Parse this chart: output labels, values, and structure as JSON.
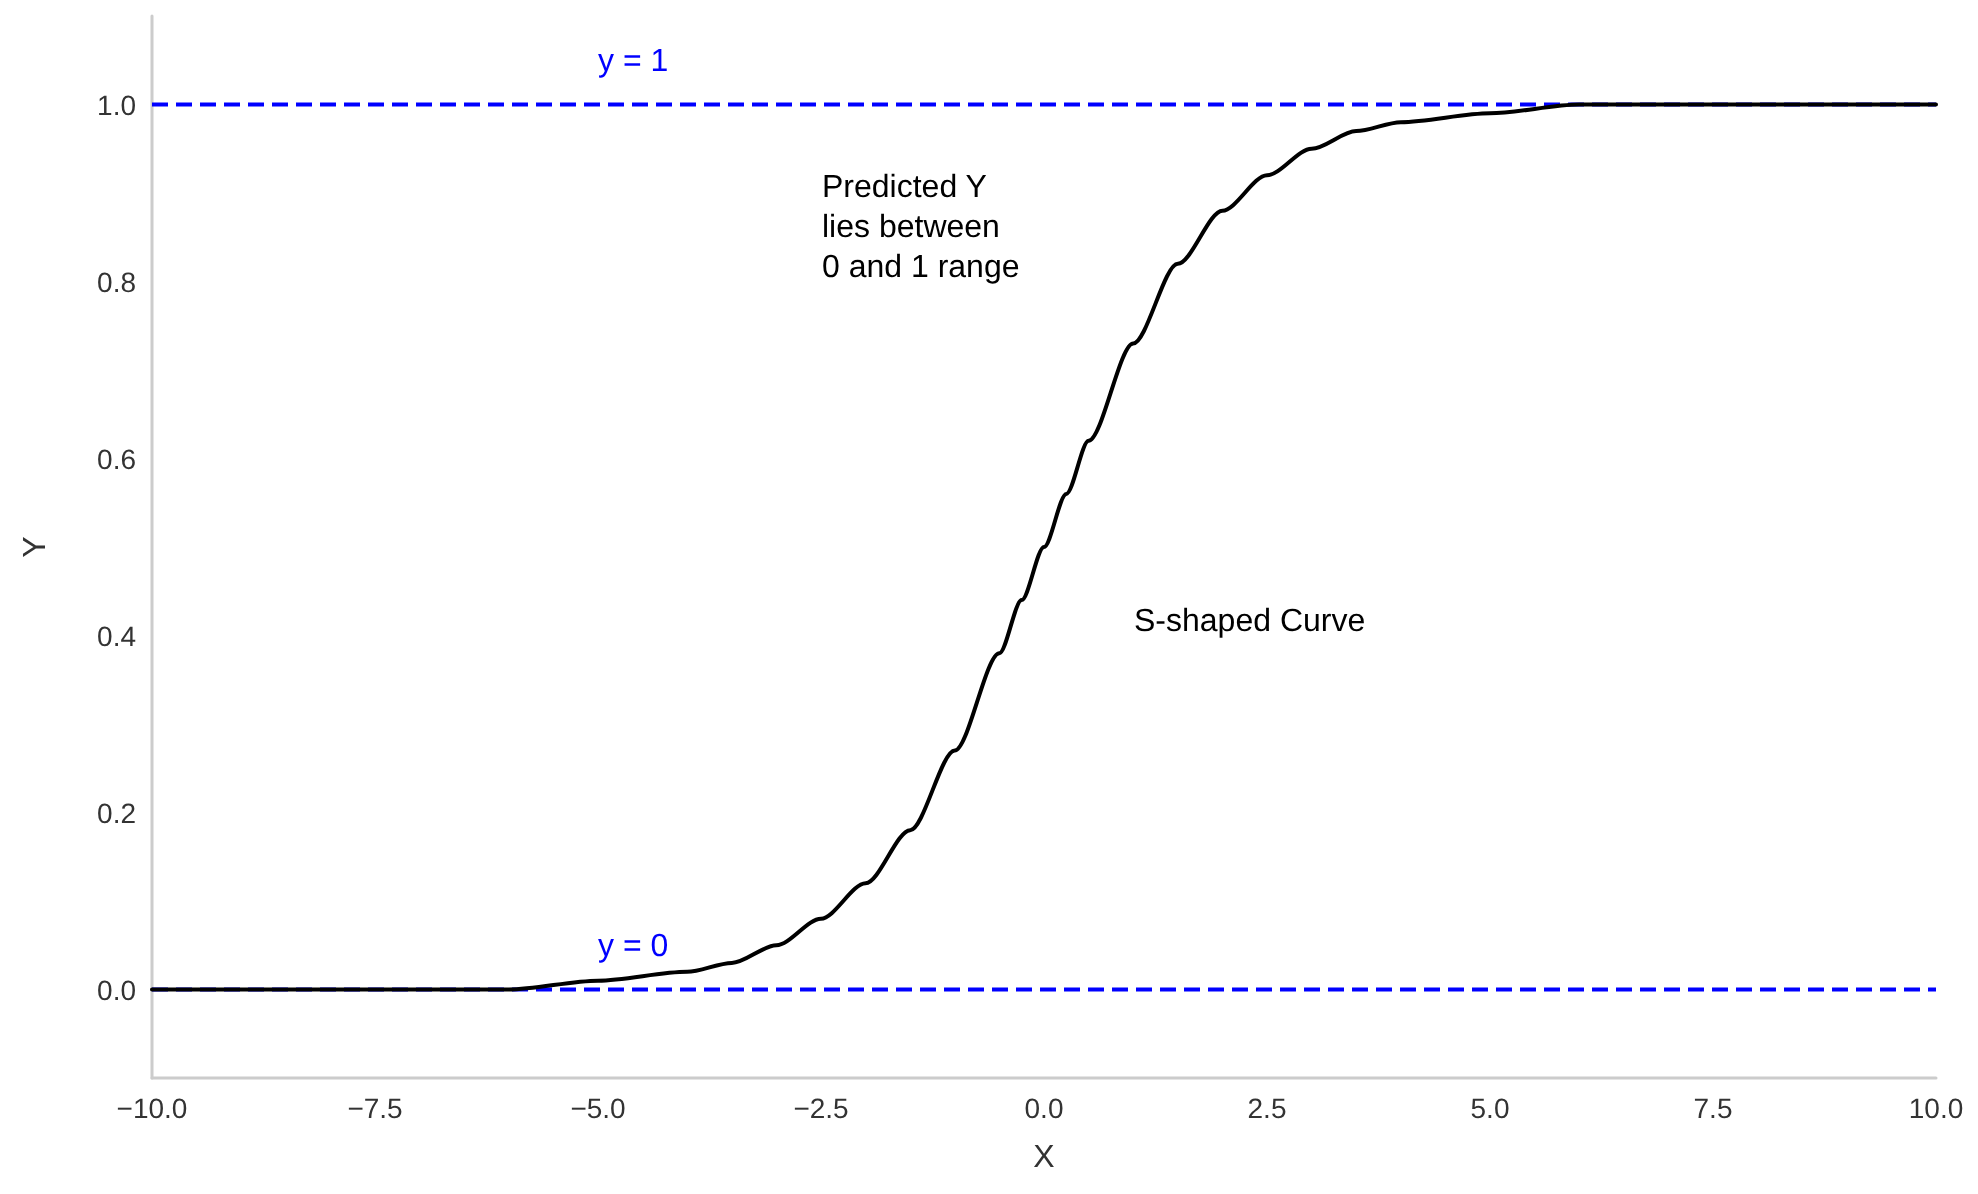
{
  "chart_data": {
    "type": "line",
    "xlabel": "X",
    "ylabel": "Y",
    "x": [
      -10,
      -8,
      -6,
      -5,
      -4,
      -3.5,
      -3,
      -2.5,
      -2,
      -1.5,
      -1,
      -0.5,
      -0.25,
      0,
      0.25,
      0.5,
      1,
      1.5,
      2,
      2.5,
      3,
      3.5,
      4,
      5,
      6,
      8,
      10
    ],
    "series": [
      {
        "color": "#000000",
        "values": [
          0.0,
          0.0,
          0.0,
          0.01,
          0.02,
          0.03,
          0.05,
          0.08,
          0.12,
          0.18,
          0.27,
          0.38,
          0.44,
          0.5,
          0.56,
          0.62,
          0.73,
          0.82,
          0.88,
          0.92,
          0.95,
          0.97,
          0.98,
          0.99,
          1.0,
          1.0,
          1.0
        ]
      }
    ],
    "xlim": [
      -10,
      10
    ],
    "xticks": [
      {
        "value": -10,
        "label": "−10.0"
      },
      {
        "value": -7.5,
        "label": "−7.5"
      },
      {
        "value": -5,
        "label": "−5.0"
      },
      {
        "value": -2.5,
        "label": "−2.5"
      },
      {
        "value": 0,
        "label": "0.0"
      },
      {
        "value": 2.5,
        "label": "2.5"
      },
      {
        "value": 5,
        "label": "5.0"
      },
      {
        "value": 7.5,
        "label": "7.5"
      },
      {
        "value": 10,
        "label": "10.0"
      }
    ],
    "ylim": [
      -0.1,
      1.1
    ],
    "yticks": [
      {
        "value": 0,
        "label": "0.0"
      },
      0.2,
      0.4,
      0.6,
      0.8,
      {
        "value": 1,
        "label": "1.0"
      }
    ],
    "ref_lines": [
      {
        "axis": "y",
        "value": 1,
        "label": "y = 1",
        "color": "#0000ff",
        "line_style": "dashed"
      },
      {
        "axis": "y",
        "value": 0,
        "label": "y = 0",
        "color": "#0000ff",
        "line_style": "dashed"
      }
    ],
    "annotations": [
      "Predicted Y\nlies between\n0 and 1 range",
      "S-shaped Curve"
    ],
    "grid": false,
    "marker": "none",
    "line_style": "solid"
  }
}
